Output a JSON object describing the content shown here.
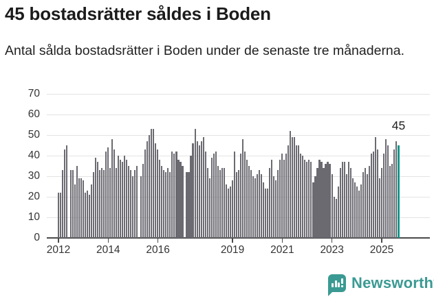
{
  "header": {
    "title": "45 bostadsrätter såldes i Boden",
    "subtitle": "Antal sålda bostadsrätter i Boden under de senaste tre månaderna."
  },
  "chart_data": {
    "type": "bar",
    "title": "45 bostadsrätter såldes i Boden",
    "subtitle": "Antal sålda bostadsrätter i Boden under de senaste tre månaderna.",
    "xlabel": "",
    "ylabel": "",
    "ylim": [
      0,
      70
    ],
    "grid": true,
    "legend_position": "none",
    "y_ticks": [
      0,
      10,
      20,
      30,
      40,
      50,
      60,
      70
    ],
    "x_tick_labels": [
      "2012",
      "2014",
      "2016",
      "2019",
      "2021",
      "2023",
      "2025"
    ],
    "x_tick_years": [
      2012,
      2014,
      2016,
      2019,
      2021,
      2023,
      2025
    ],
    "bar_color": "#6b6a71",
    "highlight_color": "#14988c",
    "highlight_index": 164,
    "highlight_label": "45",
    "annotation_color": "#222222",
    "values": [
      22,
      22,
      33,
      43,
      45,
      0,
      33,
      33,
      26,
      35,
      29,
      29,
      28,
      22,
      23,
      21,
      26,
      32,
      39,
      37,
      33,
      34,
      33,
      42,
      44,
      34,
      48,
      43,
      34,
      40,
      38,
      37,
      40,
      38,
      35,
      33,
      30,
      33,
      35,
      0,
      30,
      36,
      43,
      47,
      50,
      53,
      53,
      46,
      43,
      38,
      35,
      33,
      32,
      34,
      32,
      42,
      41,
      42,
      38,
      37,
      35,
      0,
      32,
      32,
      40,
      46,
      53,
      47,
      45,
      47,
      49,
      42,
      34,
      29,
      39,
      41,
      42,
      35,
      33,
      34,
      34,
      26,
      24,
      25,
      28,
      42,
      32,
      33,
      41,
      48,
      42,
      38,
      35,
      33,
      30,
      29,
      31,
      33,
      31,
      27,
      24,
      24,
      34,
      38,
      30,
      28,
      33,
      38,
      41,
      38,
      41,
      45,
      52,
      49,
      49,
      45,
      45,
      41,
      40,
      38,
      37,
      38,
      37,
      27,
      30,
      34,
      38,
      37,
      34,
      36,
      37,
      36,
      31,
      20,
      19,
      25,
      34,
      37,
      37,
      31,
      37,
      34,
      29,
      27,
      25,
      23,
      26,
      32,
      34,
      31,
      35,
      41,
      42,
      49,
      43,
      29,
      34,
      41,
      48,
      45,
      35,
      36,
      43,
      47,
      45
    ]
  },
  "footer": {
    "brand": "Newsworthy",
    "brand_color": "#3a9a93"
  }
}
